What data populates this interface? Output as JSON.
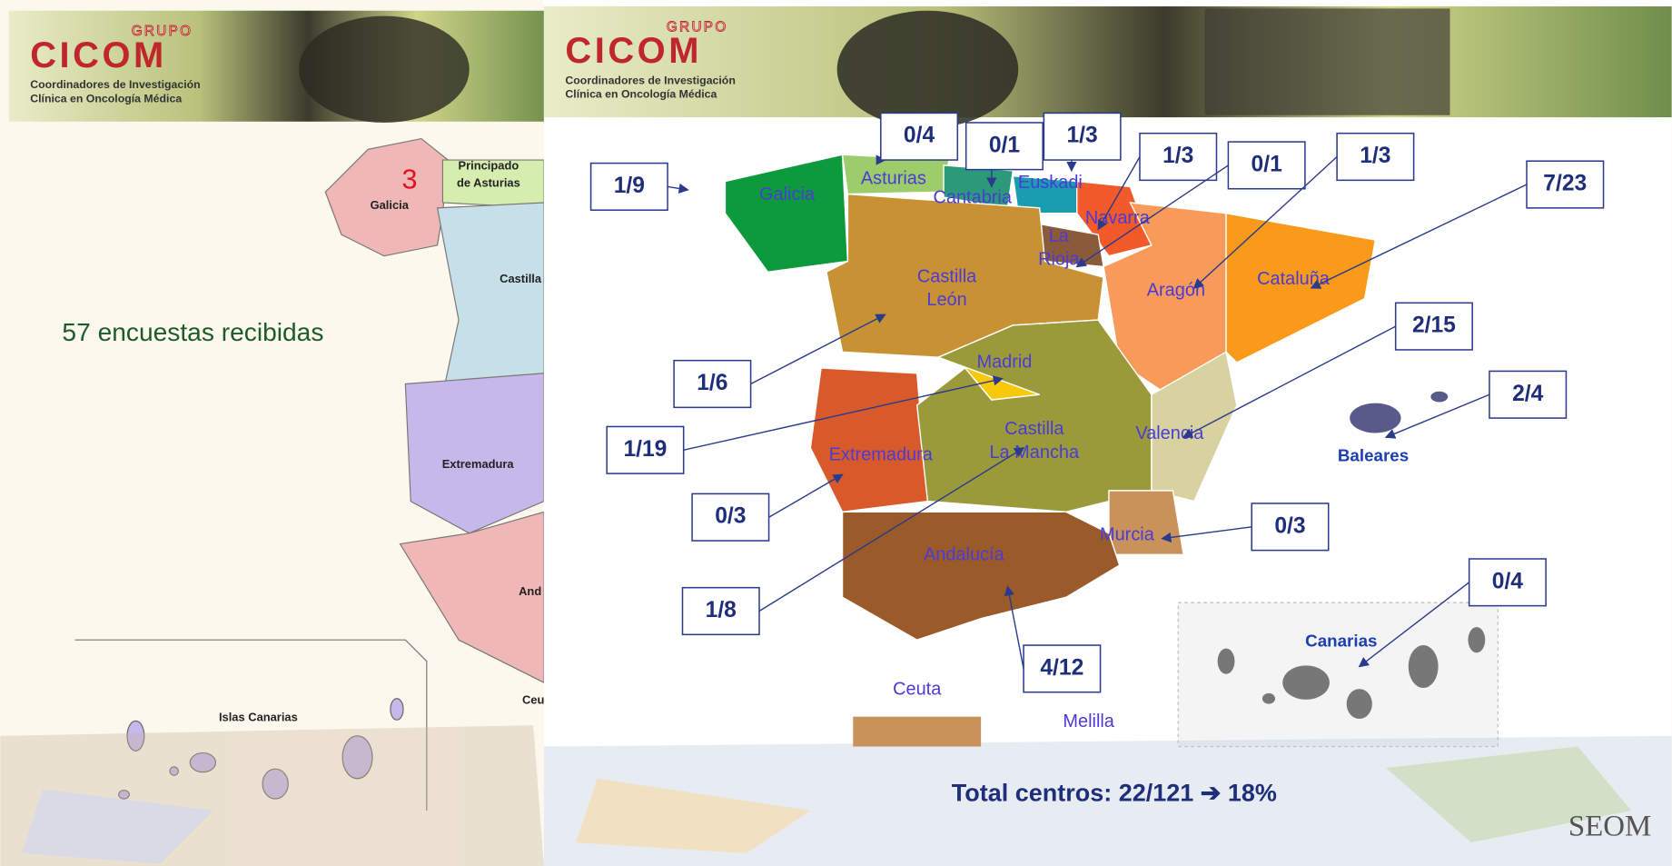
{
  "left_slide": {
    "logo": {
      "group": "GRUPO",
      "name": "CICOM",
      "tagline_1": "Coordinadores de Investigación",
      "tagline_2": "Clínica en Oncología Médica"
    },
    "text": "57 encuestas recibidas",
    "highlight_number": 3,
    "map_labels": [
      {
        "name_lines": [
          "Galicia"
        ]
      },
      {
        "name_lines": [
          "Principado",
          "de Asturias"
        ]
      },
      {
        "name_lines": [
          "Castilla"
        ]
      },
      {
        "name_lines": [
          "Extremadura"
        ]
      },
      {
        "name_lines": [
          "And"
        ]
      },
      {
        "name_lines": [
          "Islas Canarias"
        ]
      },
      {
        "name_lines": [
          "Ceu"
        ]
      }
    ]
  },
  "right_slide": {
    "logo": {
      "group": "GRUPO",
      "name": "CICOM",
      "tagline_1": "Coordinadores de Investigación",
      "tagline_2": "Clínica en Oncología Médica"
    },
    "regions": [
      {
        "name_lines": [
          "Galicia"
        ],
        "ratio": "1/9"
      },
      {
        "name_lines": [
          "Asturias"
        ],
        "ratio": "0/4"
      },
      {
        "name_lines": [
          "Cantabria"
        ],
        "ratio": "0/1"
      },
      {
        "name_lines": [
          "Euskadi"
        ],
        "ratio": "1/3"
      },
      {
        "name_lines": [
          "Navarra"
        ],
        "ratio": "1/3"
      },
      {
        "name_lines": [
          "La",
          "Rioja"
        ],
        "ratio": "0/1"
      },
      {
        "name_lines": [
          "Aragón"
        ],
        "ratio": "1/3"
      },
      {
        "name_lines": [
          "Cataluña"
        ],
        "ratio": "7/23"
      },
      {
        "name_lines": [
          "Castilla",
          "León"
        ],
        "ratio": "1/6"
      },
      {
        "name_lines": [
          "Madrid"
        ],
        "ratio": "1/19"
      },
      {
        "name_lines": [
          "Extremadura"
        ],
        "ratio": "0/3"
      },
      {
        "name_lines": [
          "Castilla",
          "La Mancha"
        ],
        "ratio": "1/8"
      },
      {
        "name_lines": [
          "Valencia"
        ],
        "ratio": "2/15"
      },
      {
        "name_lines": [
          "Baleares"
        ],
        "ratio": "2/4"
      },
      {
        "name_lines": [
          "Murcia"
        ],
        "ratio": "0/3"
      },
      {
        "name_lines": [
          "Andalucía"
        ],
        "ratio": "4/12"
      },
      {
        "name_lines": [
          "Canarias"
        ],
        "ratio": "0/4"
      },
      {
        "name_lines": [
          "Ceuta"
        ]
      },
      {
        "name_lines": [
          "Melilla"
        ]
      }
    ],
    "total": "Total centros: 22/121 ➔ 18%",
    "footer": "SEOM"
  }
}
